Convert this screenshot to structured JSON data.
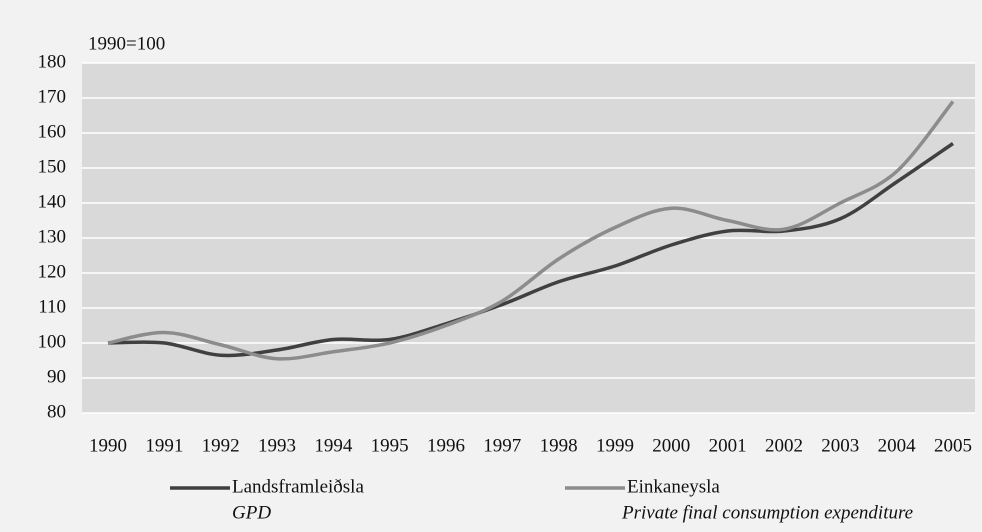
{
  "chart_data": {
    "type": "line",
    "y_unit_label": "1990=100",
    "categories": [
      "1990",
      "1991",
      "1992",
      "1993",
      "1994",
      "1995",
      "1996",
      "1997",
      "1998",
      "1999",
      "2000",
      "2001",
      "2002",
      "2003",
      "2004",
      "2005"
    ],
    "series": [
      {
        "name": "Landsframleiðsla",
        "subtitle": "GPD",
        "color": "#404040",
        "values": [
          100,
          100,
          96.5,
          98,
          101,
          101,
          105.5,
          111,
          117.5,
          122,
          128,
          132,
          132,
          135.5,
          146,
          157
        ]
      },
      {
        "name": "Einkaneysla",
        "subtitle": "Private final consumption expenditure",
        "color": "#8c8c8c",
        "values": [
          100,
          103,
          99.5,
          95.5,
          97.5,
          100,
          105,
          112,
          124,
          133,
          138.5,
          135,
          132.5,
          140,
          149,
          169
        ]
      }
    ],
    "ylim": [
      80,
      180
    ],
    "yticks": [
      80,
      90,
      100,
      110,
      120,
      130,
      140,
      150,
      160,
      170,
      180
    ],
    "grid": true
  }
}
